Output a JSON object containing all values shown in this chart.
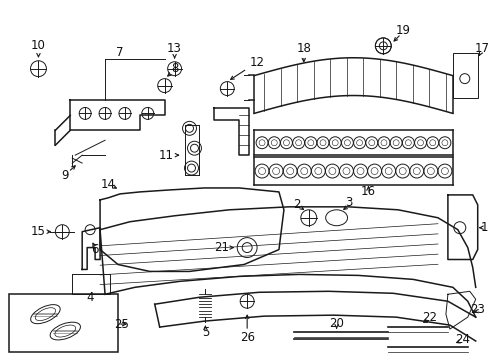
{
  "background_color": "#ffffff",
  "line_color": "#1a1a1a",
  "label_color": "#111111",
  "font_size": 8.5,
  "lw_main": 1.1,
  "lw_thin": 0.7
}
